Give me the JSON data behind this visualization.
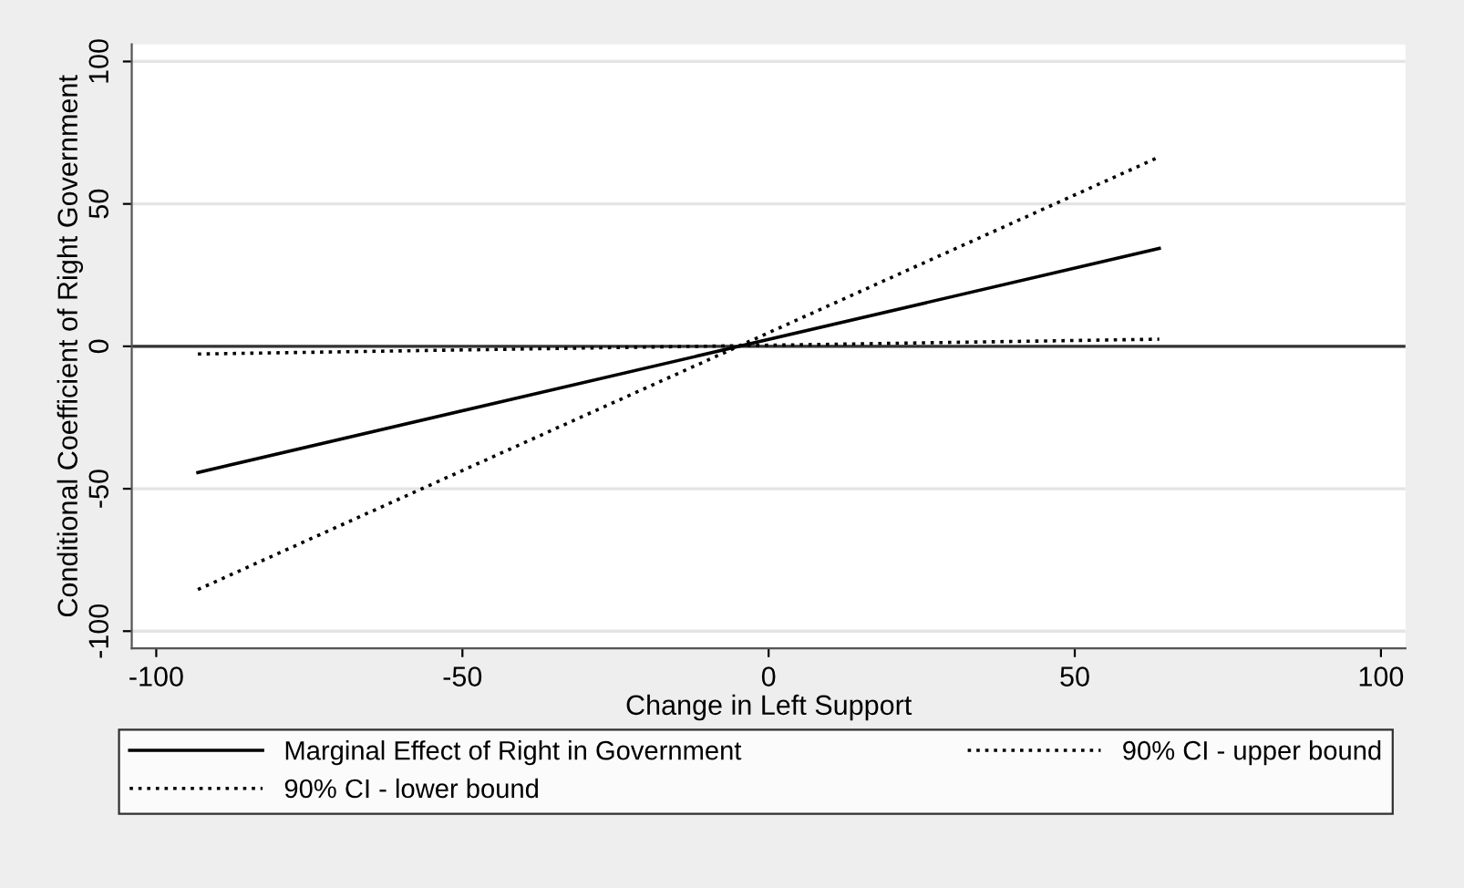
{
  "chart_data": {
    "type": "line",
    "xlabel": "Change in Left Support",
    "ylabel": "Conditional Coefficient of Right Government",
    "x": [
      -93.2,
      63.8
    ],
    "series": [
      {
        "name": "Marginal Effect of Right in Government",
        "color": "#000000",
        "line_style": "solid",
        "values": [
          -44.3,
          34.4
        ]
      },
      {
        "name": "90% CI - upper bound",
        "color": "#000000",
        "line_style": "dotted",
        "values": [
          -85.4,
          66.5
        ]
      },
      {
        "name": "90% CI - lower bound",
        "color": "#000000",
        "line_style": "dotted",
        "values": [
          -2.7,
          2.5
        ]
      }
    ],
    "xlim": [
      -104,
      104
    ],
    "ylim": [
      -106,
      106
    ],
    "xticks": [
      -100,
      -50,
      0,
      50,
      100
    ],
    "yticks": [
      -100,
      -50,
      0,
      50,
      100
    ],
    "ref_lines": [
      {
        "axis": "y",
        "value": 0,
        "color": "#333333",
        "line_style": "solid"
      }
    ],
    "grid": "y",
    "legend": "bottom",
    "marker": "none"
  }
}
